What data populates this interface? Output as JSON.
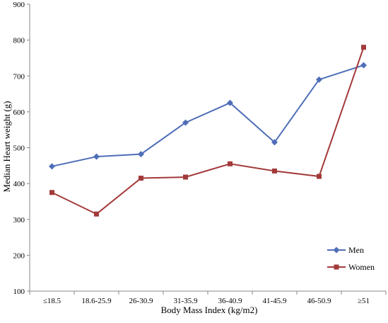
{
  "chart_data": {
    "type": "line",
    "title": "",
    "xlabel": "Body Mass Index (kg/m2)",
    "ylabel": "Median Heart weight (g)",
    "categories": [
      "≤18.5",
      "18.6-25.9",
      "26-30.9",
      "31-35.9",
      "36-40.9",
      "41-45.9",
      "46-50.9",
      "≥51"
    ],
    "ylim": [
      100,
      900
    ],
    "yticks": [
      100,
      200,
      300,
      400,
      500,
      600,
      700,
      800,
      900
    ],
    "grid": false,
    "legend_position": "bottom-right",
    "series": [
      {
        "name": "Men",
        "color": "#4f6eb8",
        "marker": "diamond",
        "values": [
          448,
          475,
          482,
          570,
          625,
          515,
          690,
          730
        ]
      },
      {
        "name": "Women",
        "color": "#a33a3a",
        "marker": "square",
        "values": [
          375,
          315,
          415,
          418,
          455,
          435,
          420,
          780
        ]
      }
    ]
  }
}
